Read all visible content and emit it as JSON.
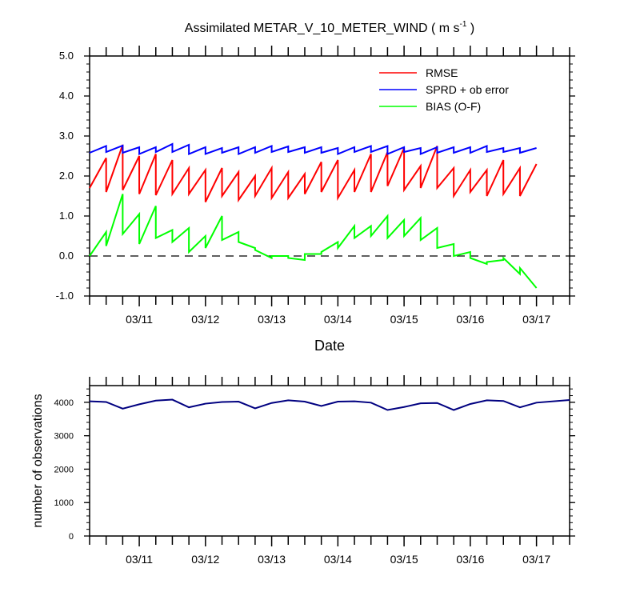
{
  "chart_data": [
    {
      "type": "line",
      "title_main": "Assimilated METAR_V_10_METER_WIND ( m s",
      "title_sup": "-1",
      "title_end": " )",
      "xlabel": "Date",
      "ylabel": "",
      "xlim": [
        0,
        7.25
      ],
      "ylim": [
        -1.0,
        5.0
      ],
      "yticks": [
        "-1.0",
        "0.0",
        "1.0",
        "2.0",
        "3.0",
        "4.0",
        "5.0"
      ],
      "ytick_values": [
        -1,
        0,
        1,
        2,
        3,
        4,
        5
      ],
      "xtick_labels": [
        "03/11",
        "03/12",
        "03/13",
        "03/14",
        "03/15",
        "03/16",
        "03/17"
      ],
      "xtick_values": [
        0.75,
        1.75,
        2.75,
        3.75,
        4.75,
        5.75,
        6.75
      ],
      "zero_line": 0,
      "legend_position": "top-right",
      "colors": {
        "rmse": "#ff0000",
        "sprd": "#0000ff",
        "bias": "#00ff00"
      },
      "series": [
        {
          "name": "RMSE",
          "color": "#ff0000",
          "points": [
            [
              0.0,
              1.7
            ],
            [
              0.25,
              2.45
            ],
            [
              0.25,
              1.6
            ],
            [
              0.5,
              2.78
            ],
            [
              0.5,
              1.65
            ],
            [
              0.75,
              2.5
            ],
            [
              0.75,
              1.55
            ],
            [
              1.0,
              2.55
            ],
            [
              1.0,
              1.52
            ],
            [
              1.25,
              2.4
            ],
            [
              1.25,
              1.55
            ],
            [
              1.5,
              2.2
            ],
            [
              1.5,
              1.55
            ],
            [
              1.75,
              2.15
            ],
            [
              1.75,
              1.35
            ],
            [
              2.0,
              2.2
            ],
            [
              2.0,
              1.5
            ],
            [
              2.25,
              2.1
            ],
            [
              2.25,
              1.4
            ],
            [
              2.5,
              2.0
            ],
            [
              2.5,
              1.5
            ],
            [
              2.75,
              2.2
            ],
            [
              2.75,
              1.45
            ],
            [
              3.0,
              2.1
            ],
            [
              3.0,
              1.45
            ],
            [
              3.25,
              2.05
            ],
            [
              3.25,
              1.55
            ],
            [
              3.5,
              2.35
            ],
            [
              3.5,
              1.6
            ],
            [
              3.75,
              2.4
            ],
            [
              3.75,
              1.45
            ],
            [
              4.0,
              2.15
            ],
            [
              4.0,
              1.6
            ],
            [
              4.25,
              2.55
            ],
            [
              4.25,
              1.6
            ],
            [
              4.5,
              2.6
            ],
            [
              4.5,
              1.75
            ],
            [
              4.75,
              2.7
            ],
            [
              4.75,
              1.65
            ],
            [
              5.0,
              2.25
            ],
            [
              5.0,
              1.7
            ],
            [
              5.25,
              2.75
            ],
            [
              5.25,
              1.7
            ],
            [
              5.5,
              2.2
            ],
            [
              5.5,
              1.5
            ],
            [
              5.75,
              2.15
            ],
            [
              5.75,
              1.6
            ],
            [
              6.0,
              2.15
            ],
            [
              6.0,
              1.5
            ],
            [
              6.25,
              2.4
            ],
            [
              6.25,
              1.55
            ],
            [
              6.5,
              2.2
            ],
            [
              6.5,
              1.5
            ],
            [
              6.75,
              2.3
            ]
          ]
        },
        {
          "name": "SPRD + ob error",
          "color": "#0000ff",
          "points": [
            [
              0.0,
              2.58
            ],
            [
              0.25,
              2.75
            ],
            [
              0.25,
              2.6
            ],
            [
              0.5,
              2.76
            ],
            [
              0.5,
              2.58
            ],
            [
              0.75,
              2.72
            ],
            [
              0.75,
              2.55
            ],
            [
              1.0,
              2.72
            ],
            [
              1.0,
              2.6
            ],
            [
              1.25,
              2.8
            ],
            [
              1.25,
              2.6
            ],
            [
              1.5,
              2.78
            ],
            [
              1.5,
              2.55
            ],
            [
              1.75,
              2.72
            ],
            [
              1.75,
              2.55
            ],
            [
              2.0,
              2.7
            ],
            [
              2.0,
              2.58
            ],
            [
              2.25,
              2.72
            ],
            [
              2.25,
              2.55
            ],
            [
              2.5,
              2.72
            ],
            [
              2.5,
              2.58
            ],
            [
              2.75,
              2.75
            ],
            [
              2.75,
              2.6
            ],
            [
              3.0,
              2.74
            ],
            [
              3.0,
              2.6
            ],
            [
              3.25,
              2.72
            ],
            [
              3.25,
              2.58
            ],
            [
              3.5,
              2.72
            ],
            [
              3.5,
              2.58
            ],
            [
              3.75,
              2.7
            ],
            [
              3.75,
              2.55
            ],
            [
              4.0,
              2.72
            ],
            [
              4.0,
              2.6
            ],
            [
              4.25,
              2.75
            ],
            [
              4.25,
              2.6
            ],
            [
              4.5,
              2.75
            ],
            [
              4.5,
              2.55
            ],
            [
              4.75,
              2.72
            ],
            [
              4.75,
              2.6
            ],
            [
              5.0,
              2.7
            ],
            [
              5.0,
              2.55
            ],
            [
              5.25,
              2.72
            ],
            [
              5.25,
              2.58
            ],
            [
              5.5,
              2.72
            ],
            [
              5.5,
              2.58
            ],
            [
              5.75,
              2.72
            ],
            [
              5.75,
              2.58
            ],
            [
              6.0,
              2.75
            ],
            [
              6.0,
              2.6
            ],
            [
              6.25,
              2.7
            ],
            [
              6.25,
              2.6
            ],
            [
              6.5,
              2.7
            ],
            [
              6.5,
              2.58
            ],
            [
              6.75,
              2.7
            ]
          ]
        },
        {
          "name": "BIAS (O-F)",
          "color": "#00ff00",
          "points": [
            [
              0.0,
              0.0
            ],
            [
              0.25,
              0.6
            ],
            [
              0.25,
              0.25
            ],
            [
              0.5,
              1.55
            ],
            [
              0.5,
              0.55
            ],
            [
              0.75,
              1.05
            ],
            [
              0.75,
              0.3
            ],
            [
              1.0,
              1.25
            ],
            [
              1.0,
              0.45
            ],
            [
              1.25,
              0.65
            ],
            [
              1.25,
              0.35
            ],
            [
              1.5,
              0.7
            ],
            [
              1.5,
              0.1
            ],
            [
              1.75,
              0.5
            ],
            [
              1.75,
              0.2
            ],
            [
              2.0,
              1.0
            ],
            [
              2.0,
              0.4
            ],
            [
              2.25,
              0.6
            ],
            [
              2.25,
              0.35
            ],
            [
              2.5,
              0.2
            ],
            [
              2.5,
              0.15
            ],
            [
              2.75,
              -0.05
            ],
            [
              2.75,
              0.0
            ],
            [
              3.0,
              0.0
            ],
            [
              3.0,
              -0.05
            ],
            [
              3.25,
              -0.1
            ],
            [
              3.25,
              0.05
            ],
            [
              3.5,
              0.05
            ],
            [
              3.5,
              0.1
            ],
            [
              3.75,
              0.35
            ],
            [
              3.75,
              0.2
            ],
            [
              4.0,
              0.75
            ],
            [
              4.0,
              0.45
            ],
            [
              4.25,
              0.75
            ],
            [
              4.25,
              0.5
            ],
            [
              4.5,
              1.0
            ],
            [
              4.5,
              0.45
            ],
            [
              4.75,
              0.9
            ],
            [
              4.75,
              0.5
            ],
            [
              5.0,
              0.95
            ],
            [
              5.0,
              0.4
            ],
            [
              5.25,
              0.7
            ],
            [
              5.25,
              0.2
            ],
            [
              5.5,
              0.3
            ],
            [
              5.5,
              0.0
            ],
            [
              5.75,
              0.1
            ],
            [
              5.75,
              -0.05
            ],
            [
              6.0,
              -0.2
            ],
            [
              6.0,
              -0.15
            ],
            [
              6.25,
              -0.1
            ],
            [
              6.25,
              -0.05
            ],
            [
              6.5,
              -0.45
            ],
            [
              6.5,
              -0.3
            ],
            [
              6.75,
              -0.8
            ]
          ]
        }
      ]
    },
    {
      "type": "line",
      "title": "",
      "xlabel": "",
      "ylabel": "number of observations",
      "xlim": [
        0,
        7.25
      ],
      "ylim": [
        0,
        4500
      ],
      "yticks": [
        "0",
        "1000",
        "2000",
        "3000",
        "4000"
      ],
      "ytick_values": [
        0,
        1000,
        2000,
        3000,
        4000
      ],
      "xtick_labels": [
        "03/11",
        "03/12",
        "03/13",
        "03/14",
        "03/15",
        "03/16",
        "03/17"
      ],
      "xtick_values": [
        0.75,
        1.75,
        2.75,
        3.75,
        4.75,
        5.75,
        6.75
      ],
      "series": [
        {
          "color": "#000080",
          "points": [
            [
              0.0,
              4030
            ],
            [
              0.25,
              4010
            ],
            [
              0.5,
              3810
            ],
            [
              0.75,
              3940
            ],
            [
              1.0,
              4050
            ],
            [
              1.25,
              4080
            ],
            [
              1.5,
              3850
            ],
            [
              1.75,
              3960
            ],
            [
              2.0,
              4010
            ],
            [
              2.25,
              4020
            ],
            [
              2.5,
              3820
            ],
            [
              2.75,
              3980
            ],
            [
              3.0,
              4060
            ],
            [
              3.25,
              4020
            ],
            [
              3.5,
              3890
            ],
            [
              3.75,
              4020
            ],
            [
              4.0,
              4030
            ],
            [
              4.25,
              3990
            ],
            [
              4.5,
              3770
            ],
            [
              4.75,
              3860
            ],
            [
              5.0,
              3970
            ],
            [
              5.25,
              3980
            ],
            [
              5.5,
              3770
            ],
            [
              5.75,
              3950
            ],
            [
              6.0,
              4060
            ],
            [
              6.25,
              4040
            ],
            [
              6.5,
              3850
            ],
            [
              6.75,
              3990
            ],
            [
              7.25,
              4070
            ]
          ]
        }
      ]
    }
  ]
}
